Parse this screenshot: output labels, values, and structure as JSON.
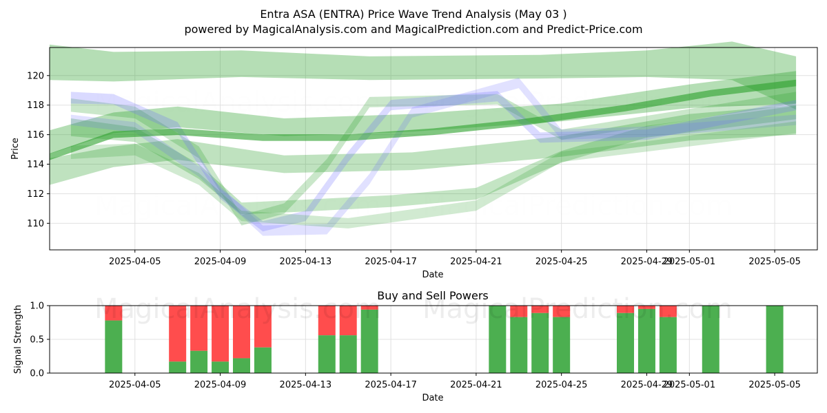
{
  "title": "Entra ASA (ENTRA) Price Wave Trend Analysis (May 03 )",
  "subtitle": "powered by MagicalAnalysis.com and MagicalPrediction.com and Predict-Price.com",
  "watermarks": [
    "MagicalAnalysis.com",
    "MagicalPrediction.com"
  ],
  "colors": {
    "green": "#2ca02c",
    "blue": "#6b6bff",
    "buy": "#4caf50",
    "sell": "#ff4d4d",
    "grid": "#e0e0e0"
  },
  "chart_data": [
    {
      "type": "area",
      "title": "",
      "xlabel": "Date",
      "ylabel": "Price",
      "x_range": [
        "2025-04-01",
        "2025-05-07"
      ],
      "ylim": [
        108.2,
        121.9
      ],
      "x_ticks": [
        "2025-04-05",
        "2025-04-09",
        "2025-04-13",
        "2025-04-17",
        "2025-04-21",
        "2025-04-25",
        "2025-04-29",
        "2025-05-01",
        "2025-05-05"
      ],
      "y_ticks": [
        110,
        112,
        114,
        116,
        118,
        120
      ],
      "grid": true,
      "series": [
        {
          "color": "green",
          "opacity": 0.35,
          "points": [
            [
              "2025-04-01",
              120.9
            ],
            [
              "2025-04-04",
              120.6
            ],
            [
              "2025-04-10",
              120.8
            ],
            [
              "2025-04-16",
              120.5
            ],
            [
              "2025-04-24",
              120.6
            ],
            [
              "2025-04-29",
              120.8
            ],
            [
              "2025-05-03",
              121.0
            ],
            [
              "2025-05-06",
              119.5
            ]
          ],
          "width": [
            2.4,
            2.0,
            1.8,
            1.6,
            1.6,
            1.8,
            2.6,
            3.6
          ]
        },
        {
          "color": "green",
          "opacity": 0.35,
          "points": [
            [
              "2025-04-01",
              115.5
            ],
            [
              "2025-04-04",
              116.8
            ],
            [
              "2025-04-07",
              117.2
            ],
            [
              "2025-04-12",
              116.5
            ],
            [
              "2025-04-18",
              116.8
            ],
            [
              "2025-04-25",
              117.5
            ],
            [
              "2025-05-01",
              118.6
            ],
            [
              "2025-05-06",
              119.2
            ]
          ],
          "width": [
            1.6,
            1.4,
            1.4,
            1.2,
            1.2,
            1.2,
            1.6,
            2.2
          ]
        },
        {
          "color": "green",
          "opacity": 0.3,
          "points": [
            [
              "2025-04-01",
              113.5
            ],
            [
              "2025-04-04",
              114.5
            ],
            [
              "2025-04-07",
              115.0
            ],
            [
              "2025-04-12",
              114.0
            ],
            [
              "2025-04-18",
              114.2
            ],
            [
              "2025-04-25",
              115.2
            ],
            [
              "2025-05-01",
              116.5
            ],
            [
              "2025-05-06",
              117.0
            ]
          ],
          "width": [
            1.8,
            1.4,
            1.4,
            1.2,
            1.2,
            1.4,
            1.8,
            2.0
          ]
        },
        {
          "color": "green",
          "opacity": 0.28,
          "points": [
            [
              "2025-04-02",
              116.5
            ],
            [
              "2025-04-05",
              116.0
            ],
            [
              "2025-04-08",
              113.5
            ],
            [
              "2025-04-10",
              111.0
            ],
            [
              "2025-04-13",
              111.2
            ],
            [
              "2025-04-17",
              111.5
            ],
            [
              "2025-04-21",
              112.0
            ],
            [
              "2025-04-25",
              114.5
            ],
            [
              "2025-04-29",
              116.2
            ],
            [
              "2025-05-06",
              117.5
            ]
          ],
          "width": [
            1.2,
            1.0,
            1.0,
            0.8,
            0.8,
            0.8,
            0.8,
            0.8,
            0.8,
            0.9
          ]
        },
        {
          "color": "green",
          "opacity": 0.25,
          "points": [
            [
              "2025-04-02",
              118.0
            ],
            [
              "2025-04-05",
              117.5
            ],
            [
              "2025-04-08",
              114.8
            ],
            [
              "2025-04-10",
              110.2
            ],
            [
              "2025-04-12",
              111.0
            ],
            [
              "2025-04-14",
              114.0
            ],
            [
              "2025-04-16",
              118.2
            ],
            [
              "2025-04-22",
              118.4
            ],
            [
              "2025-04-25",
              116.0
            ],
            [
              "2025-05-06",
              118.5
            ]
          ],
          "width": [
            0.9,
            0.8,
            0.8,
            0.7,
            0.7,
            0.7,
            0.7,
            0.7,
            0.7,
            0.8
          ]
        },
        {
          "color": "blue",
          "opacity": 0.25,
          "points": [
            [
              "2025-04-02",
              118.5
            ],
            [
              "2025-04-04",
              118.4
            ],
            [
              "2025-04-07",
              116.5
            ],
            [
              "2025-04-09",
              112.0
            ],
            [
              "2025-04-11",
              109.8
            ],
            [
              "2025-04-13",
              110.5
            ],
            [
              "2025-04-15",
              114.5
            ],
            [
              "2025-04-17",
              118.0
            ],
            [
              "2025-04-22",
              118.6
            ],
            [
              "2025-04-24",
              115.8
            ],
            [
              "2025-04-29",
              116.0
            ],
            [
              "2025-05-06",
              118.0
            ]
          ],
          "width": [
            0.8,
            0.7,
            0.7,
            0.7,
            0.7,
            0.7,
            0.7,
            0.7,
            0.7,
            0.7,
            0.7,
            0.7
          ]
        },
        {
          "color": "blue",
          "opacity": 0.2,
          "points": [
            [
              "2025-04-02",
              117.0
            ],
            [
              "2025-04-05",
              116.5
            ],
            [
              "2025-04-08",
              113.5
            ],
            [
              "2025-04-11",
              109.5
            ],
            [
              "2025-04-14",
              109.6
            ],
            [
              "2025-04-16",
              113.0
            ],
            [
              "2025-04-18",
              117.5
            ],
            [
              "2025-04-23",
              119.5
            ],
            [
              "2025-04-25",
              116.0
            ],
            [
              "2025-04-29",
              116.2
            ],
            [
              "2025-05-06",
              117.0
            ]
          ],
          "width": [
            0.7,
            0.7,
            0.7,
            0.7,
            0.7,
            0.7,
            0.7,
            0.7,
            0.7,
            0.7,
            0.7
          ]
        },
        {
          "color": "green",
          "opacity": 0.22,
          "points": [
            [
              "2025-04-02",
              114.8
            ],
            [
              "2025-04-05",
              115.0
            ],
            [
              "2025-04-08",
              113.0
            ],
            [
              "2025-04-10",
              110.5
            ],
            [
              "2025-04-15",
              110.0
            ],
            [
              "2025-04-21",
              111.2
            ],
            [
              "2025-04-25",
              114.5
            ],
            [
              "2025-04-29",
              115.2
            ],
            [
              "2025-05-06",
              116.5
            ]
          ],
          "width": [
            0.9,
            0.8,
            0.8,
            0.7,
            0.7,
            0.7,
            0.7,
            0.7,
            0.8
          ]
        },
        {
          "color": "green",
          "opacity": 0.6,
          "points": [
            [
              "2025-04-01",
              114.5
            ],
            [
              "2025-04-04",
              116.0
            ],
            [
              "2025-04-07",
              116.2
            ],
            [
              "2025-04-11",
              115.8
            ],
            [
              "2025-04-15",
              115.8
            ],
            [
              "2025-04-19",
              116.2
            ],
            [
              "2025-04-23",
              116.8
            ],
            [
              "2025-04-28",
              117.8
            ],
            [
              "2025-05-02",
              118.8
            ],
            [
              "2025-05-06",
              119.5
            ]
          ],
          "width": [
            0.45,
            0.45,
            0.45,
            0.45,
            0.45,
            0.45,
            0.45,
            0.45,
            0.45,
            0.45
          ]
        }
      ]
    },
    {
      "type": "bar",
      "title": "Buy and Sell Powers",
      "xlabel": "Date",
      "ylabel": "Signal Strength",
      "ylim": [
        0,
        1.0
      ],
      "y_ticks": [
        "0.0",
        "0.5",
        "1.0"
      ],
      "x_ticks": [
        "2025-04-05",
        "2025-04-09",
        "2025-04-13",
        "2025-04-17",
        "2025-04-21",
        "2025-04-25",
        "2025-04-29",
        "2025-05-01",
        "2025-05-05"
      ],
      "grid": true,
      "series": [
        {
          "name": "Buy",
          "color": "buy"
        },
        {
          "name": "Sell",
          "color": "sell"
        }
      ],
      "bars": [
        {
          "date": "2025-04-04",
          "buy": 0.78
        },
        {
          "date": "2025-04-07",
          "buy": 0.17
        },
        {
          "date": "2025-04-08",
          "buy": 0.33
        },
        {
          "date": "2025-04-09",
          "buy": 0.17
        },
        {
          "date": "2025-04-10",
          "buy": 0.22
        },
        {
          "date": "2025-04-11",
          "buy": 0.38
        },
        {
          "date": "2025-04-14",
          "buy": 0.56
        },
        {
          "date": "2025-04-15",
          "buy": 0.56
        },
        {
          "date": "2025-04-16",
          "buy": 0.94
        },
        {
          "date": "2025-04-22",
          "buy": 1.0
        },
        {
          "date": "2025-04-23",
          "buy": 0.83
        },
        {
          "date": "2025-04-24",
          "buy": 0.89
        },
        {
          "date": "2025-04-25",
          "buy": 0.83
        },
        {
          "date": "2025-04-28",
          "buy": 0.89
        },
        {
          "date": "2025-04-29",
          "buy": 0.95
        },
        {
          "date": "2025-04-30",
          "buy": 0.83
        },
        {
          "date": "2025-05-02",
          "buy": 1.0
        },
        {
          "date": "2025-05-05",
          "buy": 1.0
        }
      ]
    }
  ]
}
